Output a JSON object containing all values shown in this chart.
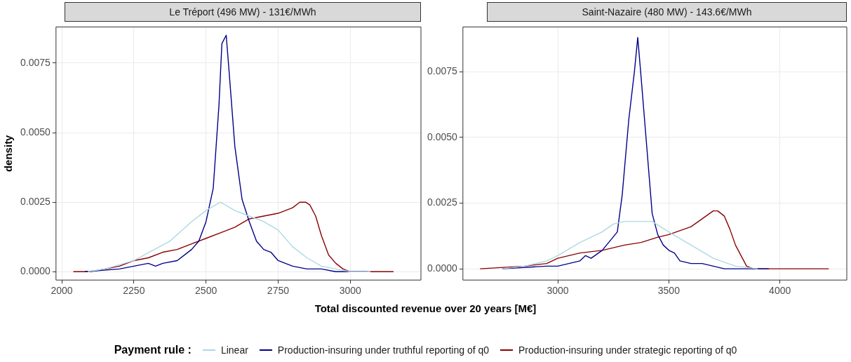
{
  "chart_data": [
    {
      "type": "line",
      "title": "Le Tréport (496 MW) - 131€/MWh",
      "xlabel": "Total discounted revenue over 20 years [M€]",
      "ylabel": "density",
      "legend_title": "Payment rule :",
      "legend": "bottom",
      "grid": true,
      "xlim": [
        1980,
        3245
      ],
      "xticks": [
        2000,
        2250,
        2500,
        2750,
        3000
      ],
      "ylim": [
        -0.0003,
        0.0088
      ],
      "yticks": [
        {
          "value": 0,
          "label": "0.0000"
        },
        {
          "value": 0.0025,
          "label": "0.0025"
        },
        {
          "value": 0.005,
          "label": "0.0050"
        },
        {
          "value": 0.0075,
          "label": "0.0075"
        }
      ],
      "series": [
        {
          "name": "Linear",
          "color": "#add8e6",
          "x": [
            2090,
            2150,
            2250,
            2375,
            2450,
            2500,
            2550,
            2600,
            2650,
            2700,
            2750,
            2800,
            2850,
            2900,
            2950,
            3000,
            3070
          ],
          "values": [
            0,
            0.0001,
            0.0004,
            0.0011,
            0.0018,
            0.0022,
            0.0025,
            0.0022,
            0.002,
            0.0018,
            0.0015,
            0.0009,
            0.0005,
            0.0002,
            0.0001,
            0,
            0
          ]
        },
        {
          "name": "Production-insuring under truthful reporting of q0",
          "color": "#00008b",
          "x": [
            2080,
            2200,
            2250,
            2300,
            2325,
            2350,
            2400,
            2450,
            2475,
            2500,
            2525,
            2545,
            2555,
            2570,
            2580,
            2600,
            2625,
            2650,
            2675,
            2700,
            2725,
            2750,
            2775,
            2800,
            2850,
            2900,
            2950,
            3060
          ],
          "values": [
            0,
            0.0001,
            0.0002,
            0.0003,
            0.0002,
            0.0003,
            0.0004,
            0.0008,
            0.0011,
            0.0018,
            0.003,
            0.006,
            0.0082,
            0.0085,
            0.0072,
            0.0045,
            0.0026,
            0.0018,
            0.0011,
            0.0008,
            0.0007,
            0.0004,
            0.0003,
            0.0002,
            0.0001,
            0.0001,
            0,
            0
          ]
        },
        {
          "name": "Production-insuring under strategic reporting of q0",
          "color": "#8b0000",
          "x": [
            2040,
            2100,
            2150,
            2200,
            2250,
            2300,
            2350,
            2400,
            2450,
            2500,
            2550,
            2600,
            2650,
            2700,
            2750,
            2800,
            2825,
            2845,
            2860,
            2880,
            2900,
            2925,
            2950,
            2975,
            3000,
            3150
          ],
          "values": [
            0,
            0,
            0.0001,
            0.0002,
            0.0004,
            0.0005,
            0.0007,
            0.0008,
            0.001,
            0.0012,
            0.0014,
            0.0016,
            0.0019,
            0.002,
            0.0021,
            0.0023,
            0.0025,
            0.0025,
            0.0024,
            0.002,
            0.0013,
            0.0006,
            0.0003,
            0.0001,
            0,
            0
          ]
        }
      ]
    },
    {
      "type": "line",
      "title": "Saint-Nazaire (480 MW) - 143.6€/MWh",
      "grid": true,
      "xlim": [
        2573,
        4301
      ],
      "xticks": [
        3000,
        3500,
        4000
      ],
      "ylim": [
        -0.00043,
        0.0092
      ],
      "yticks": [
        {
          "value": 0,
          "label": "0.0000"
        },
        {
          "value": 0.0025,
          "label": "0.0025"
        },
        {
          "value": 0.005,
          "label": "0.0050"
        },
        {
          "value": 0.0075,
          "label": "0.0075"
        }
      ],
      "series": [
        {
          "color": "#add8e6",
          "x": [
            2750,
            2850,
            2950,
            3000,
            3100,
            3200,
            3250,
            3300,
            3375,
            3425,
            3500,
            3600,
            3700,
            3800,
            3900
          ],
          "values": [
            0,
            0.0001,
            0.0003,
            0.0005,
            0.001,
            0.0014,
            0.0017,
            0.0018,
            0.0018,
            0.0018,
            0.0014,
            0.0009,
            0.0004,
            0.0001,
            0
          ]
        },
        {
          "color": "#00008b",
          "x": [
            2750,
            2950,
            3000,
            3050,
            3100,
            3125,
            3150,
            3200,
            3268,
            3290,
            3320,
            3345,
            3360,
            3375,
            3400,
            3425,
            3450,
            3475,
            3500,
            3525,
            3550,
            3600,
            3650,
            3700,
            3750,
            3950
          ],
          "values": [
            0,
            0.0001,
            0.0001,
            0.0002,
            0.0003,
            0.0005,
            0.0004,
            0.0007,
            0.0014,
            0.0028,
            0.0057,
            0.0075,
            0.0088,
            0.0073,
            0.0047,
            0.0021,
            0.0013,
            0.0009,
            0.0007,
            0.0006,
            0.0003,
            0.0002,
            0.0002,
            0.0001,
            0,
            0
          ]
        },
        {
          "color": "#8b0000",
          "x": [
            2650,
            2850,
            2950,
            3000,
            3050,
            3100,
            3200,
            3300,
            3375,
            3450,
            3500,
            3600,
            3650,
            3700,
            3720,
            3750,
            3775,
            3800,
            3825,
            3850,
            3880,
            4220
          ],
          "values": [
            0,
            0.0001,
            0.0002,
            0.0004,
            0.0005,
            0.0006,
            0.0007,
            0.0009,
            0.001,
            0.0012,
            0.0013,
            0.0016,
            0.0019,
            0.0022,
            0.0022,
            0.002,
            0.0015,
            0.0009,
            0.0005,
            0.0001,
            0,
            0
          ]
        }
      ]
    }
  ]
}
